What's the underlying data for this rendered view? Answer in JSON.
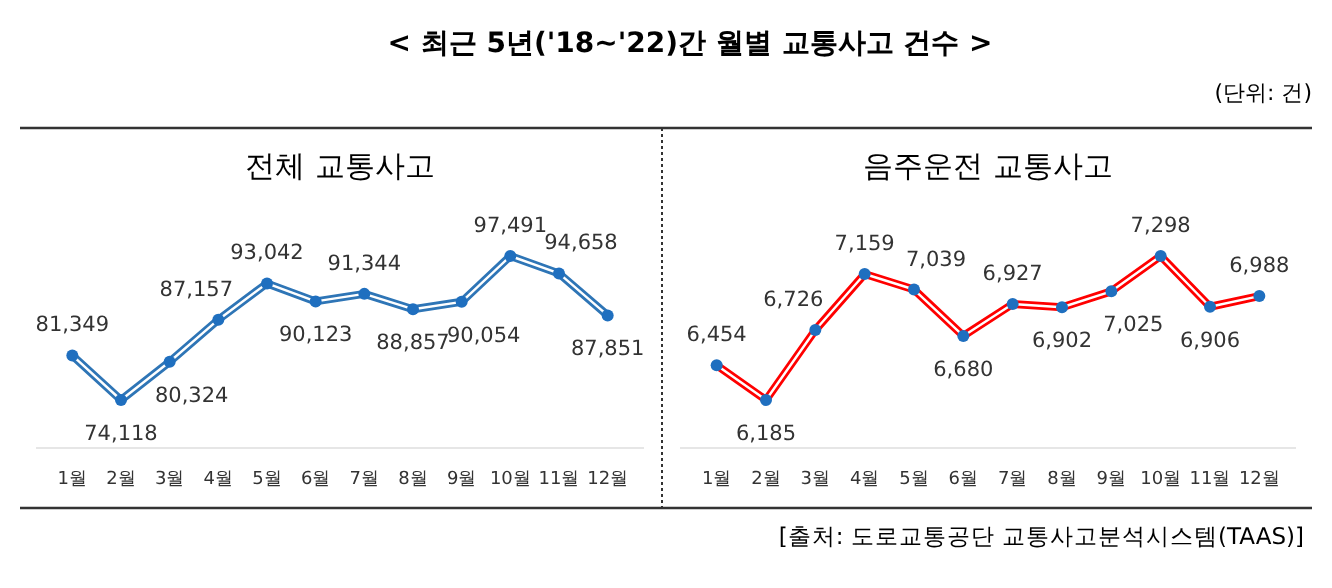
{
  "chart_data": [
    {
      "type": "line",
      "title": "전체 교통사고",
      "annotations": [
        "< 최근 5년('18~'22)간 월별 교통사고 건수 >",
        "(단위: 건)"
      ],
      "categories": [
        "1월",
        "2월",
        "3월",
        "4월",
        "5월",
        "6월",
        "7월",
        "8월",
        "9월",
        "10월",
        "11월",
        "12월"
      ],
      "series": [
        {
          "color": "#2e75b6",
          "values": [
            81349,
            74118,
            80324,
            87157,
            93042,
            90123,
            91344,
            88857,
            90054,
            97491,
            94658,
            87851
          ],
          "value_labels": [
            "81,349",
            "74,118",
            "80,324",
            "87,157",
            "93,042",
            "90,123",
            "91,344",
            "88,857",
            "90,054",
            "97,491",
            "94,658",
            "87,851"
          ]
        }
      ],
      "marker": "circle"
    },
    {
      "type": "line",
      "title": "음주운전 교통사고",
      "annotations": [
        "[출처: 도로교통공단 교통사고분석시스템(TAAS)]"
      ],
      "categories": [
        "1월",
        "2월",
        "3월",
        "4월",
        "5월",
        "6월",
        "7월",
        "8월",
        "9월",
        "10월",
        "11월",
        "12월"
      ],
      "series": [
        {
          "color": "#ff0000",
          "values": [
            6454,
            6185,
            6726,
            7159,
            7039,
            6680,
            6927,
            6902,
            7025,
            7298,
            6906,
            6988
          ],
          "value_labels": [
            "6,454",
            "6,185",
            "6,726",
            "7,159",
            "7,039",
            "6,680",
            "6,927",
            "6,902",
            "7,025",
            "7,298",
            "6,906",
            "6,988"
          ]
        }
      ],
      "marker": "circle"
    }
  ]
}
